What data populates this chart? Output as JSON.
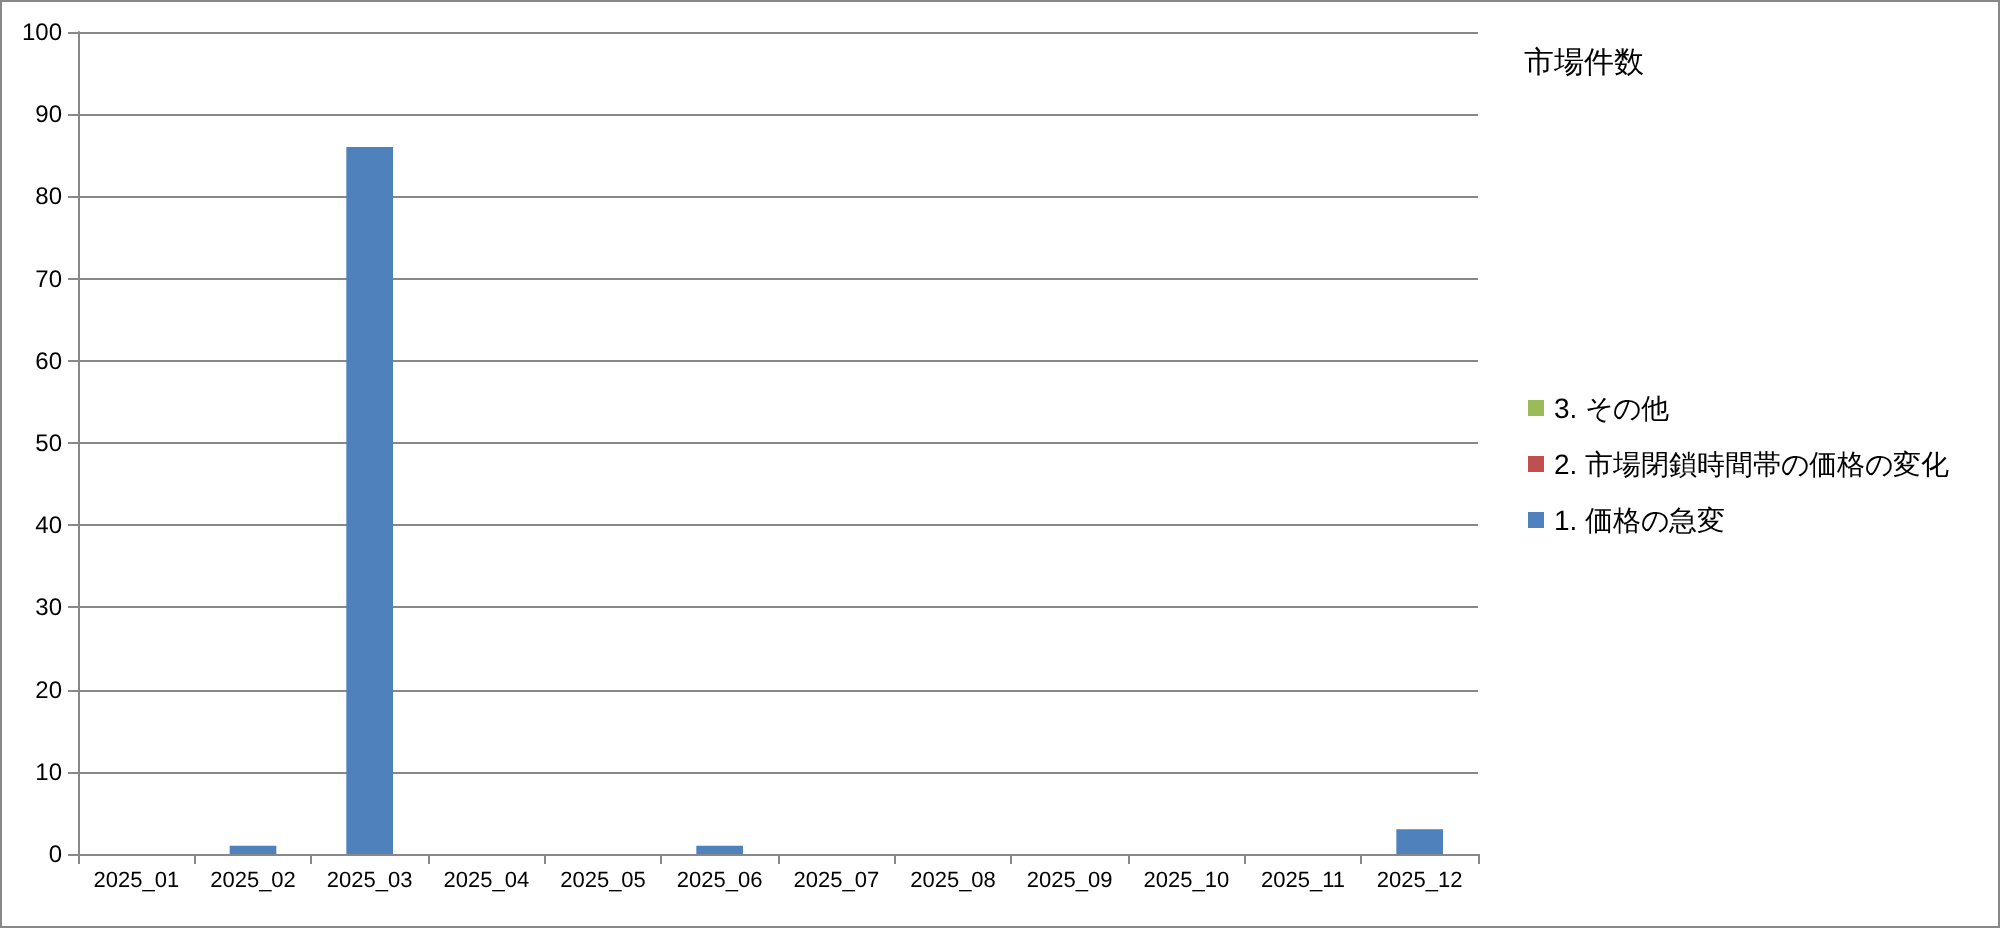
{
  "chart_data": {
    "type": "bar",
    "title": "市場件数",
    "categories": [
      "2025_01",
      "2025_02",
      "2025_03",
      "2025_04",
      "2025_05",
      "2025_06",
      "2025_07",
      "2025_08",
      "2025_09",
      "2025_10",
      "2025_11",
      "2025_12"
    ],
    "series": [
      {
        "name": "1. 価格の急変",
        "color": "#4f81bd",
        "values": [
          0,
          1,
          86,
          0,
          0,
          1,
          0,
          0,
          0,
          0,
          0,
          3
        ]
      },
      {
        "name": "2. 市場閉鎖時間帯の価格の変化",
        "color": "#c0504d",
        "values": [
          0,
          0,
          0,
          0,
          0,
          0,
          0,
          0,
          0,
          0,
          0,
          0
        ]
      },
      {
        "name": "3. その他",
        "color": "#9bbb59",
        "values": [
          0,
          0,
          0,
          0,
          0,
          0,
          0,
          0,
          0,
          0,
          0,
          0
        ]
      }
    ],
    "stacked": true,
    "ylim": [
      0,
      100
    ],
    "yticks": [
      0,
      10,
      20,
      30,
      40,
      50,
      60,
      70,
      80,
      90,
      100
    ],
    "grid": "y",
    "legend": "right"
  }
}
